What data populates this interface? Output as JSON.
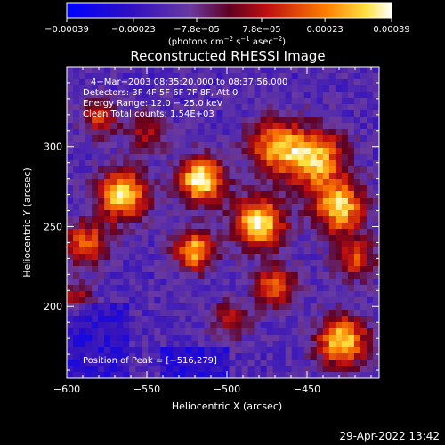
{
  "chart_data": {
    "type": "heatmap",
    "title": "Reconstructed RHESSI Image",
    "xlabel": "Heliocentric X (arcsec)",
    "ylabel": "Heliocentric Y (arcsec)",
    "xlim": [
      -600,
      -405
    ],
    "ylim": [
      155,
      350
    ],
    "x_ticks": [
      -600,
      -550,
      -500,
      -450
    ],
    "x_tick_labels": [
      "−600",
      "−550",
      "−500",
      "−450"
    ],
    "y_ticks": [
      200,
      250,
      300
    ],
    "y_tick_labels": [
      "200",
      "250",
      "300"
    ],
    "grid": false,
    "colorbar": {
      "position": "top",
      "min": -0.00039,
      "max": 0.00039,
      "ticks": [
        -0.00039,
        -0.00023,
        -7.8e-05,
        7.8e-05,
        0.00023,
        0.00039
      ],
      "tick_labels": [
        "−0.00039",
        "−0.00023",
        "−7.8e−05",
        "7.8e−05",
        "0.00023",
        "0.00039"
      ],
      "units_base": "(photons cm",
      "units_exp1": "−2",
      "units_mid1": " s",
      "units_exp2": "−1",
      "units_mid2": " asec",
      "units_exp3": "−2",
      "units_end": ")"
    },
    "annotations": [
      "4−Mar−2003 08:35:20.000 to 08:37:56.000",
      "Detectors: 3F 4F 5F 6F 7F 8F, Att 0",
      "Energy Range: 12.0 − 25.0 keV",
      "Clean     Total counts: 1.54E+03"
    ],
    "peak_label": "Position of Peak = [−516,279]",
    "peak": [
      -516,
      279
    ],
    "sources": [
      {
        "x": -516,
        "y": 279,
        "w": 10,
        "amp": 1.0
      },
      {
        "x": -480,
        "y": 252,
        "w": 11,
        "amp": 0.95
      },
      {
        "x": -565,
        "y": 270,
        "w": 11,
        "amp": 0.9
      },
      {
        "x": -430,
        "y": 262,
        "w": 11,
        "amp": 0.88
      },
      {
        "x": -445,
        "y": 292,
        "w": 13,
        "amp": 0.82
      },
      {
        "x": -470,
        "y": 300,
        "w": 12,
        "amp": 0.7
      },
      {
        "x": -520,
        "y": 235,
        "w": 9,
        "amp": 0.8
      },
      {
        "x": -428,
        "y": 178,
        "w": 11,
        "amp": 0.88
      },
      {
        "x": -470,
        "y": 212,
        "w": 9,
        "amp": 0.65
      },
      {
        "x": -588,
        "y": 240,
        "w": 10,
        "amp": 0.6
      },
      {
        "x": -580,
        "y": 318,
        "w": 8,
        "amp": 0.5
      },
      {
        "x": -420,
        "y": 230,
        "w": 9,
        "amp": 0.55
      },
      {
        "x": -498,
        "y": 192,
        "w": 8,
        "amp": 0.45
      },
      {
        "x": -550,
        "y": 310,
        "w": 9,
        "amp": 0.4
      },
      {
        "x": -595,
        "y": 205,
        "w": 7,
        "amp": 0.45
      }
    ]
  },
  "footer": {
    "timestamp": "29-Apr-2022 13:42"
  }
}
